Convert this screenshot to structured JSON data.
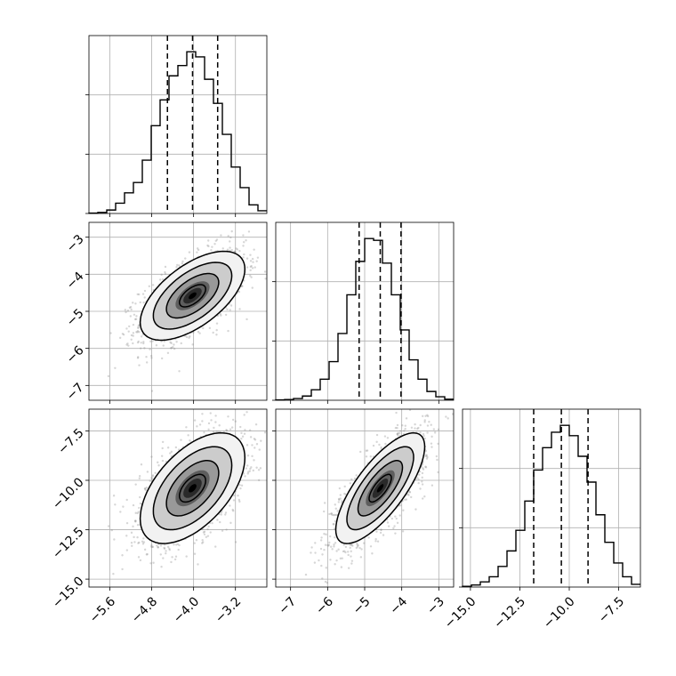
{
  "chart_data": [
    {
      "type": "histogram",
      "panel": "param-1-marginal",
      "x_range": [
        -6.0,
        -2.6
      ],
      "bins": [
        -6.0,
        -5.83,
        -5.66,
        -5.49,
        -5.32,
        -5.15,
        -4.98,
        -4.81,
        -4.64,
        -4.47,
        -4.3,
        -4.13,
        -3.96,
        -3.79,
        -3.62,
        -3.45,
        -3.28,
        -3.11,
        -2.94,
        -2.77,
        -2.6
      ],
      "counts": [
        1,
        3,
        10,
        30,
        60,
        90,
        155,
        255,
        330,
        400,
        430,
        470,
        455,
        390,
        320,
        230,
        135,
        75,
        25,
        8
      ],
      "quantiles": [
        -4.5,
        -4.02,
        -3.54
      ],
      "grid": true
    },
    {
      "type": "histogram",
      "panel": "param-2-marginal",
      "x_range": [
        -7.4,
        -2.6
      ],
      "bins": [
        -7.4,
        -7.16,
        -6.92,
        -6.68,
        -6.44,
        -6.2,
        -5.96,
        -5.72,
        -5.48,
        -5.24,
        -5.0,
        -4.76,
        -4.52,
        -4.28,
        -4.04,
        -3.8,
        -3.56,
        -3.32,
        -3.08,
        -2.84,
        -2.6
      ],
      "counts": [
        1,
        2,
        5,
        12,
        30,
        60,
        110,
        190,
        300,
        395,
        460,
        455,
        390,
        300,
        200,
        115,
        60,
        25,
        10,
        3
      ],
      "quantiles": [
        -5.15,
        -4.58,
        -4.02
      ],
      "grid": true
    },
    {
      "type": "histogram",
      "panel": "param-3-marginal",
      "x_range": [
        -15.4,
        -6.4
      ],
      "bins": [
        -15.4,
        -14.95,
        -14.5,
        -14.05,
        -13.6,
        -13.15,
        -12.7,
        -12.25,
        -11.8,
        -11.35,
        -10.9,
        -10.45,
        -10.0,
        -9.55,
        -9.1,
        -8.65,
        -8.2,
        -7.75,
        -7.3,
        -6.85,
        -6.4
      ],
      "counts": [
        2,
        6,
        15,
        30,
        60,
        105,
        165,
        250,
        340,
        405,
        450,
        470,
        440,
        380,
        305,
        210,
        130,
        70,
        30,
        8
      ],
      "quantiles": [
        -11.8,
        -10.4,
        -9.05
      ],
      "grid": true
    },
    {
      "type": "scatter_contour",
      "panel": "param-2-vs-param-1",
      "x_range": [
        -6.0,
        -2.6
      ],
      "y_range": [
        -7.4,
        -2.6
      ],
      "x_ticks": [
        -5.6,
        -4.8,
        -4.0,
        -3.2
      ],
      "y_ticks": [
        -3,
        -4,
        -5,
        -6,
        -7
      ],
      "y_tick_labels": [
        "−3",
        "−4",
        "−5",
        "−6",
        "−7"
      ],
      "mean": [
        -4.02,
        -4.58
      ],
      "sigma": [
        0.5,
        0.6
      ],
      "rho": 0.6,
      "grid": true
    },
    {
      "type": "scatter_contour",
      "panel": "param-3-vs-param-1",
      "x_range": [
        -6.0,
        -2.6
      ],
      "y_range": [
        -15.4,
        -6.4
      ],
      "x_ticks": [
        -5.6,
        -4.8,
        -4.0,
        -3.2
      ],
      "x_tick_labels": [
        "−5.6",
        "−4.8",
        "−4.0",
        "−3.2"
      ],
      "y_ticks": [
        -7.5,
        -10.0,
        -12.5,
        -15.0
      ],
      "y_tick_labels": [
        "−7.5",
        "−10.0",
        "−12.5",
        "−15.0"
      ],
      "mean": [
        -4.02,
        -10.4
      ],
      "sigma": [
        0.5,
        1.4
      ],
      "rho": 0.55,
      "grid": true
    },
    {
      "type": "scatter_contour",
      "panel": "param-3-vs-param-2",
      "x_range": [
        -7.4,
        -2.6
      ],
      "y_range": [
        -15.4,
        -6.4
      ],
      "x_ticks": [
        -7,
        -6,
        -5,
        -4,
        -3
      ],
      "x_tick_labels": [
        "−7",
        "−6",
        "−5",
        "−4",
        "−3"
      ],
      "y_ticks": [
        -7.5,
        -10.0,
        -12.5,
        -15.0
      ],
      "mean": [
        -4.58,
        -10.4
      ],
      "sigma": [
        0.6,
        1.4
      ],
      "rho": 0.75,
      "grid": true
    },
    {
      "type": "axis",
      "panel": "param-3-marginal-xaxis",
      "x_range": [
        -15.4,
        -6.4
      ],
      "x_ticks": [
        -15.0,
        -12.5,
        -10.0,
        -7.5
      ],
      "x_tick_labels": [
        "−15.0",
        "−12.5",
        "−10.0",
        "−7.5"
      ]
    }
  ],
  "colors": {
    "histogram_line": "#000000",
    "quantile_line": "#000000",
    "scatter_points": "#8a8a8a",
    "density_dark": "#000000",
    "density_light": "#ffffff",
    "contour_line": "#000000",
    "grid": "#b0b0b0",
    "frame": "#000000"
  }
}
